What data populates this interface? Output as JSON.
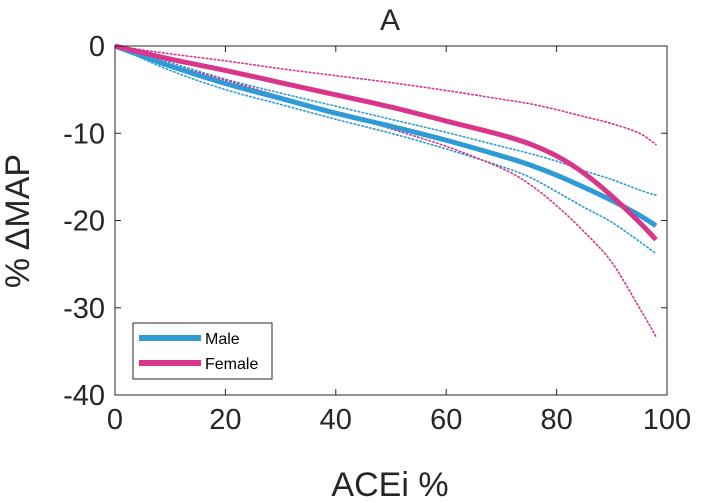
{
  "chart_data": {
    "type": "line",
    "title": "A",
    "xlabel": "ACEi %",
    "ylabel": "% ΔMAP",
    "xlim": [
      0,
      100
    ],
    "ylim": [
      -40,
      0
    ],
    "xticks": [
      0,
      20,
      40,
      60,
      80,
      100
    ],
    "yticks": [
      0,
      -10,
      -20,
      -30,
      -40
    ],
    "xtick_labels": [
      "0",
      "20",
      "40",
      "60",
      "80",
      "100"
    ],
    "ytick_labels": [
      "0",
      "-10",
      "-20",
      "-30",
      "-40"
    ],
    "grid": false,
    "legend_position": "bottom-left",
    "legend": [
      {
        "label": "Male",
        "color": "#2e9bd6"
      },
      {
        "label": "Female",
        "color": "#d9368b"
      }
    ],
    "x": [
      0,
      10,
      20,
      30,
      40,
      50,
      60,
      70,
      75,
      80,
      85,
      90,
      95,
      98
    ],
    "series": [
      {
        "name": "Male",
        "role": "mean",
        "color": "#2e9bd6",
        "values": [
          0,
          -2.3,
          -4.3,
          -6.0,
          -7.7,
          -9.2,
          -10.8,
          -12.6,
          -13.6,
          -14.8,
          -16.2,
          -17.7,
          -19.4,
          -20.6
        ]
      },
      {
        "role": "upper-bound",
        "color": "#2e9bd6",
        "values": [
          0,
          -1.9,
          -3.8,
          -5.4,
          -6.9,
          -8.4,
          -9.9,
          -11.5,
          -12.3,
          -13.2,
          -14.3,
          -15.3,
          -16.5,
          -17.1
        ]
      },
      {
        "role": "lower-bound",
        "color": "#2e9bd6",
        "values": [
          0,
          -2.8,
          -5.0,
          -6.7,
          -8.4,
          -10.0,
          -11.8,
          -13.8,
          -15.0,
          -16.7,
          -18.5,
          -20.2,
          -22.4,
          -23.8
        ]
      },
      {
        "name": "Female",
        "role": "mean",
        "color": "#d9368b",
        "values": [
          0,
          -1.5,
          -2.8,
          -4.2,
          -5.6,
          -7.0,
          -8.6,
          -10.2,
          -11.2,
          -12.6,
          -14.6,
          -17.2,
          -20.2,
          -22.2
        ]
      },
      {
        "role": "upper-bound",
        "color": "#d9368b",
        "values": [
          0,
          -0.9,
          -1.7,
          -2.6,
          -3.4,
          -4.2,
          -5.1,
          -6.1,
          -6.6,
          -7.3,
          -8.1,
          -8.9,
          -10.0,
          -11.3
        ]
      },
      {
        "role": "lower-bound",
        "color": "#d9368b",
        "values": [
          0,
          -2.1,
          -3.9,
          -5.8,
          -7.6,
          -9.5,
          -11.5,
          -14.0,
          -15.8,
          -18.3,
          -21.3,
          -24.8,
          -30.0,
          -33.3
        ]
      }
    ]
  }
}
